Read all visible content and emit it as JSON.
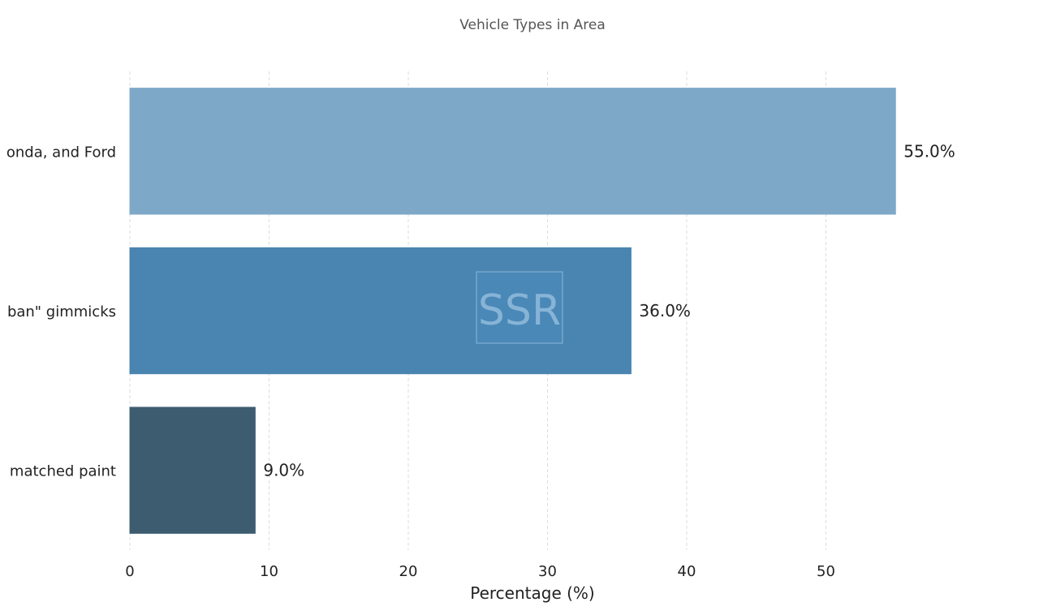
{
  "chart_data": {
    "type": "bar",
    "orientation": "horizontal",
    "title": "Vehicle Types in Area",
    "xlabel": "Percentage (%)",
    "ylabel": "",
    "categories": [
      "onda, and Ford",
      "ban\" gimmicks",
      "matched paint"
    ],
    "values": [
      55.0,
      36.0,
      9.0
    ],
    "value_labels": [
      "55.0%",
      "36.0%",
      "9.0%"
    ],
    "colors": [
      "#7ea8c8",
      "#4a84b0",
      "#3d5c70"
    ],
    "xlim": [
      0,
      60
    ],
    "xticks": [
      0,
      10,
      20,
      30,
      40,
      50
    ],
    "grid": "vertical, dashed",
    "watermark": "SSR",
    "watermark_color": "#4a8dbf"
  }
}
